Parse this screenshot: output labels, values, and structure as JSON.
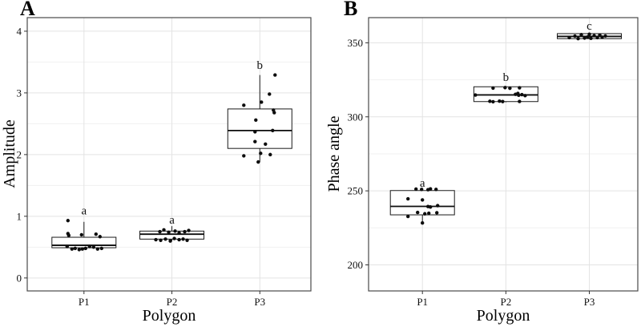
{
  "colors": {
    "background": "#ffffff",
    "panel_border": "#4a4a4a",
    "grid_major": "#e3e3e3",
    "grid_minor": "#f1f1f1",
    "box_fill": "#ffffff",
    "box_stroke": "#1a1a1a",
    "median_stroke": "#0d0d0d",
    "point": "#0d0d0d",
    "tick": "#333333",
    "text": "#111111"
  },
  "chart_data": [
    {
      "type": "boxplot",
      "panel_label": "A",
      "xlabel": "Polygon",
      "ylabel": "Amplitude",
      "categories": [
        "P1",
        "P2",
        "P3"
      ],
      "ylim": [
        -0.21,
        4.22
      ],
      "yticks": [
        0,
        1,
        2,
        3,
        4
      ],
      "ytick_labels": [
        "0",
        "1",
        "2",
        "3",
        "4"
      ],
      "yticks_minor": [
        0.5,
        1.5,
        2.5,
        3.5
      ],
      "grid": true,
      "legend": "none",
      "groups": [
        {
          "category": "P1",
          "sig_letter": "a",
          "sig_letter_y": 1.08,
          "box": {
            "whisker_low": 0.46,
            "q1": 0.49,
            "median": 0.53,
            "q3": 0.66,
            "whisker_high": 0.91
          },
          "points": [
            [
              -20,
              0.93
            ],
            [
              -20,
              0.72
            ],
            [
              -19,
              0.69
            ],
            [
              -3,
              0.7
            ],
            [
              15,
              0.71
            ],
            [
              20,
              0.67
            ],
            [
              -21,
              0.51
            ],
            [
              -15,
              0.47
            ],
            [
              -11,
              0.48
            ],
            [
              -6,
              0.46
            ],
            [
              -2,
              0.47
            ],
            [
              2,
              0.48
            ],
            [
              7,
              0.51
            ],
            [
              12,
              0.5
            ],
            [
              17,
              0.47
            ],
            [
              22,
              0.48
            ]
          ]
        },
        {
          "category": "P2",
          "sig_letter": "a",
          "sig_letter_y": 0.93,
          "box": {
            "whisker_low": 0.6,
            "q1": 0.63,
            "median": 0.71,
            "q3": 0.76,
            "whisker_high": 0.84
          },
          "points": [
            [
              -15,
              0.75
            ],
            [
              -10,
              0.78
            ],
            [
              -4,
              0.74
            ],
            [
              4,
              0.76
            ],
            [
              9,
              0.73
            ],
            [
              16,
              0.75
            ],
            [
              21,
              0.77
            ],
            [
              -20,
              0.62
            ],
            [
              -14,
              0.61
            ],
            [
              -8,
              0.63
            ],
            [
              -2,
              0.6
            ],
            [
              3,
              0.64
            ],
            [
              9,
              0.62
            ],
            [
              14,
              0.63
            ],
            [
              19,
              0.61
            ]
          ]
        },
        {
          "category": "P3",
          "sig_letter": "b",
          "sig_letter_y": 3.44,
          "box": {
            "whisker_low": 1.88,
            "q1": 2.1,
            "median": 2.39,
            "q3": 2.74,
            "whisker_high": 3.29
          },
          "points": [
            [
              19,
              3.29
            ],
            [
              12,
              2.98
            ],
            [
              2,
              2.85
            ],
            [
              -20,
              2.8
            ],
            [
              17,
              2.72
            ],
            [
              18,
              2.68
            ],
            [
              -5,
              2.56
            ],
            [
              16,
              2.39
            ],
            [
              -6,
              2.37
            ],
            [
              -6,
              2.21
            ],
            [
              7,
              2.17
            ],
            [
              1,
              2.02
            ],
            [
              13,
              2.0
            ],
            [
              -20,
              1.98
            ],
            [
              -2,
              1.88
            ]
          ]
        }
      ]
    },
    {
      "type": "boxplot",
      "panel_label": "B",
      "xlabel": "Polygon",
      "ylabel": "Phase angle",
      "categories": [
        "P1",
        "P2",
        "P3"
      ],
      "ylim": [
        182.4,
        367
      ],
      "yticks": [
        200,
        250,
        300,
        350
      ],
      "ytick_labels": [
        "200",
        "250",
        "300",
        "350"
      ],
      "yticks_minor": [
        225,
        275,
        325
      ],
      "grid": true,
      "legend": "none",
      "groups": [
        {
          "category": "P1",
          "sig_letter": "a",
          "sig_letter_y": 255.0,
          "box": {
            "whisker_low": 228.3,
            "q1": 233.8,
            "median": 239.5,
            "q3": 250.2,
            "whisker_high": 251.3
          },
          "points": [
            [
              -8,
              251.2
            ],
            [
              -1,
              251.0
            ],
            [
              7,
              250.8
            ],
            [
              10,
              251.3
            ],
            [
              17,
              251.0
            ],
            [
              -18,
              244.6
            ],
            [
              0,
              243.9
            ],
            [
              7,
              239.4
            ],
            [
              10,
              239.1
            ],
            [
              19,
              240.0
            ],
            [
              -6,
              235.4
            ],
            [
              3,
              234.5
            ],
            [
              8,
              234.9
            ],
            [
              18,
              235.2
            ],
            [
              -18,
              232.7
            ],
            [
              0,
              228.3
            ]
          ]
        },
        {
          "category": "P2",
          "sig_letter": "b",
          "sig_letter_y": 326.5,
          "box": {
            "whisker_low": 309.8,
            "q1": 310.3,
            "median": 314.8,
            "q3": 320.3,
            "whisker_high": 320.8
          },
          "points": [
            [
              -16,
              319.4
            ],
            [
              -1,
              319.7
            ],
            [
              5,
              319.3
            ],
            [
              17,
              319.6
            ],
            [
              -38,
              314.7
            ],
            [
              12,
              315.2
            ],
            [
              16,
              314.6
            ],
            [
              20,
              315.0
            ],
            [
              24,
              314.3
            ],
            [
              15,
              315.8
            ],
            [
              -20,
              310.5
            ],
            [
              -16,
              310.2
            ],
            [
              -8,
              310.6
            ],
            [
              -4,
              310.3
            ],
            [
              17,
              310.4
            ]
          ]
        },
        {
          "category": "P3",
          "sig_letter": "c",
          "sig_letter_y": 361.0,
          "box": {
            "whisker_low": 352.5,
            "q1": 352.8,
            "median": 354.3,
            "q3": 356.2,
            "whisker_high": 356.6
          },
          "points": [
            [
              -25,
              353.5
            ],
            [
              -18,
              354.5
            ],
            [
              -14,
              352.8
            ],
            [
              -10,
              355.5
            ],
            [
              -6,
              353.2
            ],
            [
              -2,
              354.0
            ],
            [
              0,
              355.8
            ],
            [
              2,
              353.0
            ],
            [
              6,
              354.8
            ],
            [
              10,
              353.5
            ],
            [
              13,
              355.2
            ],
            [
              16,
              353.8
            ],
            [
              20,
              354.6
            ]
          ]
        }
      ]
    }
  ]
}
